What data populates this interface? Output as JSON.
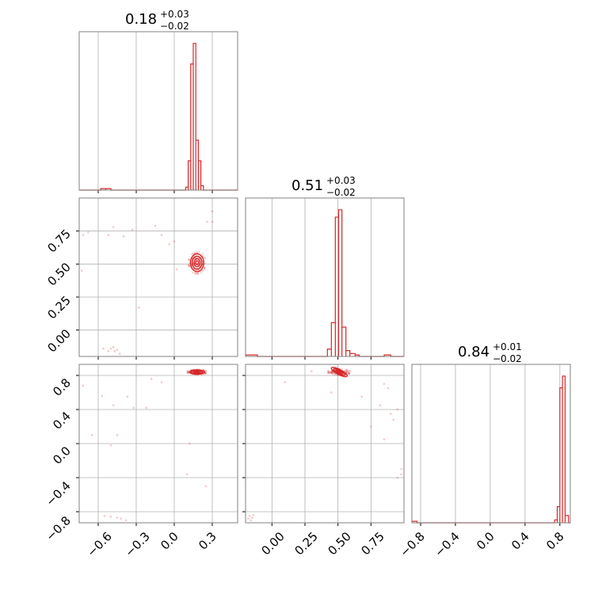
{
  "colors": {
    "series": "#d62728",
    "grid": "#b0b0b0",
    "frame": "#808080"
  },
  "chart_data": [
    {
      "type": "histogram",
      "panel": "p00",
      "title": {
        "value": "0.18",
        "plus": "+0.03",
        "minus": "−0.02"
      },
      "xlim": [
        -0.75,
        0.5
      ],
      "ylim": [
        0,
        1.08
      ],
      "grid": true,
      "bins": [
        {
          "x0": -0.58,
          "x1": -0.54,
          "y": 0.01
        },
        {
          "x0": -0.54,
          "x1": -0.5,
          "y": 0.01
        },
        {
          "x0": 0.09,
          "x1": 0.11,
          "y": 0.02
        },
        {
          "x0": 0.11,
          "x1": 0.13,
          "y": 0.2
        },
        {
          "x0": 0.13,
          "x1": 0.15,
          "y": 0.86
        },
        {
          "x0": 0.15,
          "x1": 0.17,
          "y": 1.0
        },
        {
          "x0": 0.17,
          "x1": 0.19,
          "y": 0.34
        },
        {
          "x0": 0.19,
          "x1": 0.21,
          "y": 0.2
        },
        {
          "x0": 0.21,
          "x1": 0.23,
          "y": 0.03
        }
      ]
    },
    {
      "type": "histogram",
      "panel": "p11",
      "title": {
        "value": "0.51",
        "plus": "+0.03",
        "minus": "−0.02"
      },
      "xlim": [
        -0.2,
        1.0
      ],
      "ylim": [
        0,
        1.08
      ],
      "grid": true,
      "bins": [
        {
          "x0": -0.2,
          "x1": -0.11,
          "y": 0.01
        },
        {
          "x0": 0.42,
          "x1": 0.45,
          "y": 0.05
        },
        {
          "x0": 0.45,
          "x1": 0.48,
          "y": 0.23
        },
        {
          "x0": 0.48,
          "x1": 0.505,
          "y": 0.95
        },
        {
          "x0": 0.505,
          "x1": 0.53,
          "y": 1.0
        },
        {
          "x0": 0.53,
          "x1": 0.56,
          "y": 0.2
        },
        {
          "x0": 0.56,
          "x1": 0.59,
          "y": 0.04
        },
        {
          "x0": 0.59,
          "x1": 0.63,
          "y": 0.02
        },
        {
          "x0": 0.63,
          "x1": 0.66,
          "y": 0.01
        },
        {
          "x0": 0.85,
          "x1": 0.9,
          "y": 0.01
        }
      ]
    },
    {
      "type": "histogram",
      "panel": "p22",
      "title": {
        "value": "0.84",
        "plus": "+0.01",
        "minus": "−0.02"
      },
      "xlim": [
        -0.9,
        0.92
      ],
      "ylim": [
        0,
        1.08
      ],
      "grid": true,
      "bins": [
        {
          "x0": -0.9,
          "x1": -0.84,
          "y": 0.01
        },
        {
          "x0": 0.74,
          "x1": 0.77,
          "y": 0.02
        },
        {
          "x0": 0.77,
          "x1": 0.8,
          "y": 0.11
        },
        {
          "x0": 0.8,
          "x1": 0.83,
          "y": 0.92
        },
        {
          "x0": 0.83,
          "x1": 0.86,
          "y": 1.0
        },
        {
          "x0": 0.86,
          "x1": 0.9,
          "y": 0.05
        }
      ]
    },
    {
      "type": "scatter",
      "panel": "p10",
      "xlim": [
        -0.75,
        0.5
      ],
      "ylim": [
        -0.2,
        1.0
      ],
      "grid": true,
      "yticks": [
        "0.00",
        "0.25",
        "0.50",
        "0.75"
      ],
      "cluster": {
        "cx": 0.18,
        "cy": 0.51,
        "rx": 0.07,
        "ry": 0.09
      },
      "points": [
        [
          -0.72,
          0.72
        ],
        [
          -0.68,
          0.74
        ],
        [
          -0.52,
          0.72
        ],
        [
          -0.48,
          0.78
        ],
        [
          -0.33,
          0.76
        ],
        [
          -0.4,
          0.71
        ],
        [
          -0.15,
          0.79
        ],
        [
          -0.1,
          0.72
        ],
        [
          -0.28,
          0.17
        ],
        [
          -0.73,
          0.45
        ],
        [
          -0.48,
          -0.13
        ],
        [
          -0.5,
          -0.14
        ],
        [
          -0.45,
          -0.15
        ],
        [
          -0.47,
          -0.16
        ],
        [
          -0.52,
          -0.16
        ],
        [
          -0.43,
          -0.18
        ],
        [
          -0.56,
          -0.14
        ],
        [
          0.3,
          0.9
        ],
        [
          0.26,
          0.82
        ],
        [
          0.3,
          0.82
        ],
        [
          0.02,
          0.46
        ],
        [
          -0.04,
          0.65
        ],
        [
          0.0,
          0.67
        ]
      ]
    },
    {
      "type": "scatter",
      "panel": "p20",
      "xlim": [
        -0.75,
        0.5
      ],
      "ylim": [
        -0.93,
        0.93
      ],
      "grid": true,
      "yticks": [
        "−0.8",
        "−0.4",
        "0.0",
        "0.4",
        "0.8"
      ],
      "xticks": [
        "−0.6",
        "−0.3",
        "0.0",
        "0.3"
      ],
      "cluster": {
        "cx": 0.18,
        "cy": 0.84,
        "rx": 0.08,
        "ry": 0.035
      },
      "points": [
        [
          -0.72,
          0.68
        ],
        [
          -0.65,
          0.1
        ],
        [
          -0.57,
          0.56
        ],
        [
          -0.48,
          0.45
        ],
        [
          -0.45,
          0.1
        ],
        [
          -0.5,
          -0.02
        ],
        [
          -0.37,
          0.55
        ],
        [
          -0.22,
          0.42
        ],
        [
          -0.1,
          0.72
        ],
        [
          0.1,
          -0.36
        ],
        [
          0.25,
          -0.5
        ],
        [
          -0.45,
          -0.87
        ],
        [
          -0.5,
          -0.86
        ],
        [
          -0.42,
          -0.88
        ],
        [
          -0.55,
          -0.85
        ],
        [
          -0.38,
          -0.9
        ],
        [
          -0.32,
          0.42
        ],
        [
          0.12,
          0.0
        ],
        [
          -0.18,
          0.76
        ]
      ]
    },
    {
      "type": "scatter",
      "panel": "p21",
      "xlim": [
        -0.2,
        1.0
      ],
      "ylim": [
        -0.93,
        0.93
      ],
      "grid": true,
      "xticks": [
        "0.00",
        "0.25",
        "0.50",
        "0.75"
      ],
      "cluster": {
        "cx": 0.51,
        "cy": 0.84,
        "rx": 0.09,
        "ry": 0.04
      },
      "points": [
        [
          -0.17,
          -0.85
        ],
        [
          -0.15,
          -0.87
        ],
        [
          -0.18,
          -0.88
        ],
        [
          -0.14,
          -0.84
        ],
        [
          -0.16,
          -0.9
        ],
        [
          0.1,
          0.72
        ],
        [
          0.85,
          0.7
        ],
        [
          0.88,
          0.65
        ],
        [
          0.9,
          0.35
        ],
        [
          0.95,
          0.4
        ],
        [
          0.92,
          0.28
        ],
        [
          0.98,
          -0.3
        ],
        [
          0.95,
          -0.4
        ],
        [
          0.85,
          0.05
        ],
        [
          0.75,
          0.2
        ],
        [
          0.82,
          0.45
        ],
        [
          0.3,
          0.85
        ],
        [
          0.68,
          0.55
        ],
        [
          0.45,
          0.6
        ],
        [
          0.98,
          -0.36
        ]
      ]
    }
  ]
}
